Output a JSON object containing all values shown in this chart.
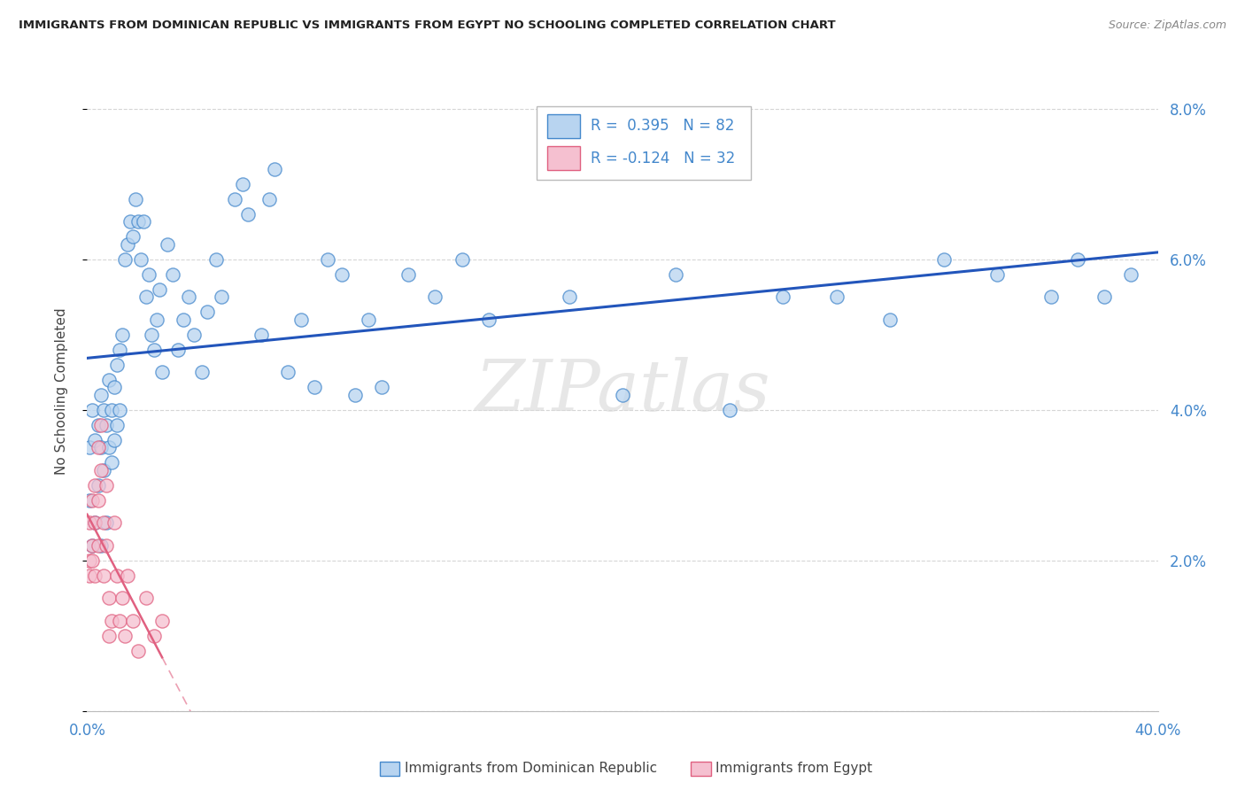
{
  "title": "IMMIGRANTS FROM DOMINICAN REPUBLIC VS IMMIGRANTS FROM EGYPT NO SCHOOLING COMPLETED CORRELATION CHART",
  "source": "Source: ZipAtlas.com",
  "ylabel": "No Schooling Completed",
  "watermark": "ZIPatlas",
  "legend_r1_text": "R =  0.395   N = 82",
  "legend_r2_text": "R = -0.124   N = 32",
  "blue_fill": "#b8d4f0",
  "blue_edge": "#4488cc",
  "pink_fill": "#f5c0d0",
  "pink_edge": "#e06080",
  "blue_line": "#2255bb",
  "pink_line": "#e06080",
  "grid_color": "#cccccc",
  "axis_label_color": "#4488cc",
  "title_color": "#222222",
  "source_color": "#888888",
  "ylabel_color": "#444444",
  "blue_x": [
    0.001,
    0.001,
    0.002,
    0.002,
    0.003,
    0.003,
    0.004,
    0.004,
    0.005,
    0.005,
    0.005,
    0.006,
    0.006,
    0.007,
    0.007,
    0.008,
    0.008,
    0.009,
    0.009,
    0.01,
    0.01,
    0.011,
    0.011,
    0.012,
    0.012,
    0.013,
    0.014,
    0.015,
    0.016,
    0.017,
    0.018,
    0.019,
    0.02,
    0.021,
    0.022,
    0.023,
    0.024,
    0.025,
    0.026,
    0.027,
    0.028,
    0.03,
    0.032,
    0.034,
    0.036,
    0.038,
    0.04,
    0.043,
    0.045,
    0.048,
    0.05,
    0.055,
    0.058,
    0.06,
    0.065,
    0.068,
    0.07,
    0.075,
    0.08,
    0.085,
    0.09,
    0.095,
    0.1,
    0.105,
    0.11,
    0.12,
    0.13,
    0.14,
    0.15,
    0.18,
    0.2,
    0.22,
    0.24,
    0.26,
    0.28,
    0.3,
    0.32,
    0.34,
    0.36,
    0.37,
    0.38,
    0.39
  ],
  "blue_y": [
    0.035,
    0.028,
    0.04,
    0.022,
    0.036,
    0.025,
    0.038,
    0.03,
    0.042,
    0.035,
    0.022,
    0.04,
    0.032,
    0.038,
    0.025,
    0.044,
    0.035,
    0.04,
    0.033,
    0.043,
    0.036,
    0.046,
    0.038,
    0.048,
    0.04,
    0.05,
    0.06,
    0.062,
    0.065,
    0.063,
    0.068,
    0.065,
    0.06,
    0.065,
    0.055,
    0.058,
    0.05,
    0.048,
    0.052,
    0.056,
    0.045,
    0.062,
    0.058,
    0.048,
    0.052,
    0.055,
    0.05,
    0.045,
    0.053,
    0.06,
    0.055,
    0.068,
    0.07,
    0.066,
    0.05,
    0.068,
    0.072,
    0.045,
    0.052,
    0.043,
    0.06,
    0.058,
    0.042,
    0.052,
    0.043,
    0.058,
    0.055,
    0.06,
    0.052,
    0.055,
    0.042,
    0.058,
    0.04,
    0.055,
    0.055,
    0.052,
    0.06,
    0.058,
    0.055,
    0.06,
    0.055,
    0.058
  ],
  "pink_x": [
    0.001,
    0.001,
    0.001,
    0.002,
    0.002,
    0.002,
    0.003,
    0.003,
    0.003,
    0.004,
    0.004,
    0.004,
    0.005,
    0.005,
    0.006,
    0.006,
    0.007,
    0.007,
    0.008,
    0.008,
    0.009,
    0.01,
    0.011,
    0.012,
    0.013,
    0.014,
    0.015,
    0.017,
    0.019,
    0.022,
    0.025,
    0.028
  ],
  "pink_y": [
    0.025,
    0.02,
    0.018,
    0.028,
    0.022,
    0.02,
    0.03,
    0.025,
    0.018,
    0.035,
    0.028,
    0.022,
    0.038,
    0.032,
    0.025,
    0.018,
    0.03,
    0.022,
    0.01,
    0.015,
    0.012,
    0.025,
    0.018,
    0.012,
    0.015,
    0.01,
    0.018,
    0.012,
    0.008,
    0.015,
    0.01,
    0.012
  ]
}
